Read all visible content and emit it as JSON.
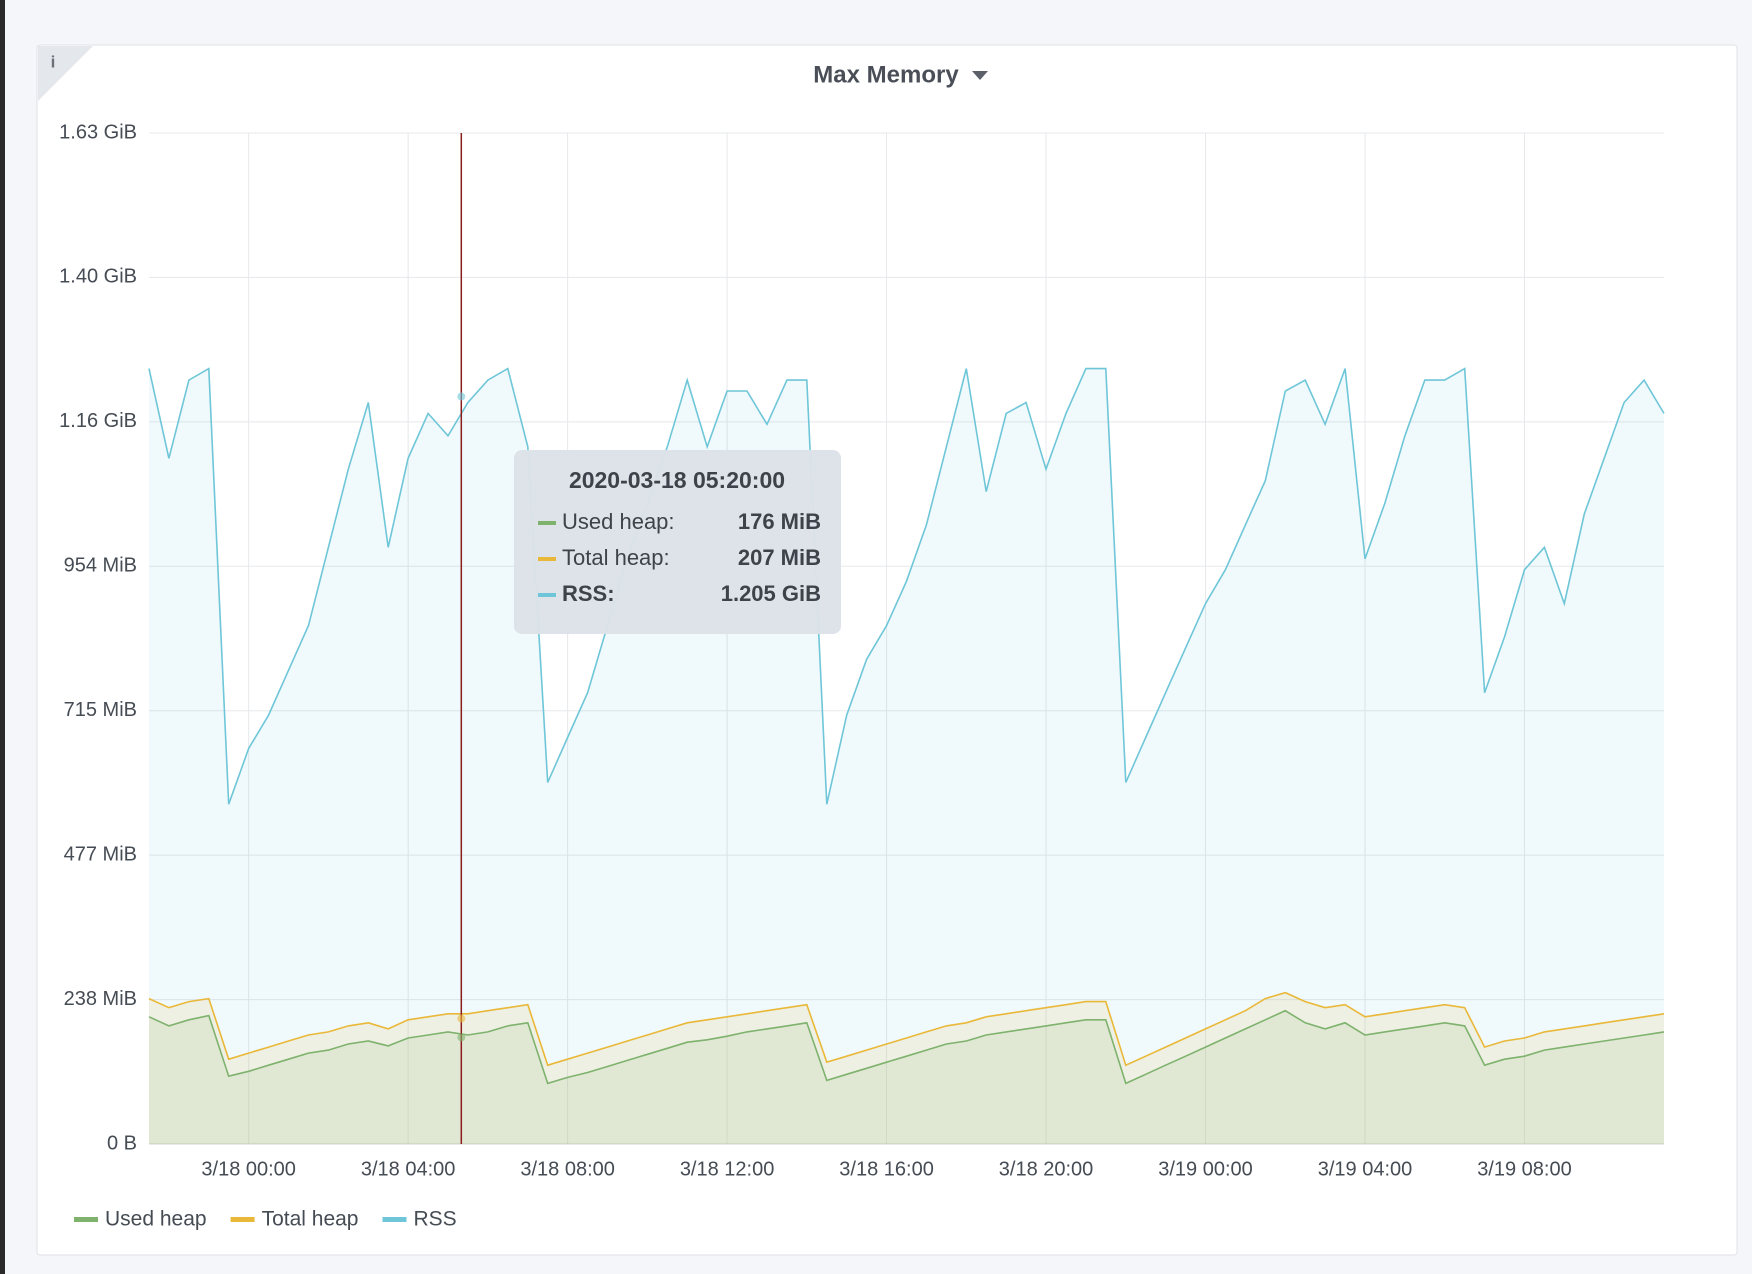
{
  "info_icon": "i",
  "chart_data": {
    "type": "line",
    "title": "Max Memory",
    "x": [
      "2020-03-17 21:30",
      "2020-03-17 22:00",
      "2020-03-17 22:30",
      "2020-03-17 23:00",
      "2020-03-17 23:30",
      "2020-03-18 00:00",
      "2020-03-18 00:30",
      "2020-03-18 01:00",
      "2020-03-18 01:30",
      "2020-03-18 02:00",
      "2020-03-18 02:30",
      "2020-03-18 03:00",
      "2020-03-18 03:30",
      "2020-03-18 04:00",
      "2020-03-18 04:30",
      "2020-03-18 05:00",
      "2020-03-18 05:30",
      "2020-03-18 06:00",
      "2020-03-18 06:30",
      "2020-03-18 07:00",
      "2020-03-18 07:30",
      "2020-03-18 08:00",
      "2020-03-18 08:30",
      "2020-03-18 09:00",
      "2020-03-18 09:30",
      "2020-03-18 10:00",
      "2020-03-18 10:30",
      "2020-03-18 11:00",
      "2020-03-18 11:30",
      "2020-03-18 12:00",
      "2020-03-18 12:30",
      "2020-03-18 13:00",
      "2020-03-18 13:30",
      "2020-03-18 14:00",
      "2020-03-18 14:30",
      "2020-03-18 15:00",
      "2020-03-18 15:30",
      "2020-03-18 16:00",
      "2020-03-18 16:30",
      "2020-03-18 17:00",
      "2020-03-18 17:30",
      "2020-03-18 18:00",
      "2020-03-18 18:30",
      "2020-03-18 19:00",
      "2020-03-18 19:30",
      "2020-03-18 20:00",
      "2020-03-18 20:30",
      "2020-03-18 21:00",
      "2020-03-18 21:30",
      "2020-03-18 22:00",
      "2020-03-18 22:30",
      "2020-03-18 23:00",
      "2020-03-18 23:30",
      "2020-03-19 00:00",
      "2020-03-19 00:30",
      "2020-03-19 01:00",
      "2020-03-19 01:30",
      "2020-03-19 02:00",
      "2020-03-19 02:30",
      "2020-03-19 03:00",
      "2020-03-19 03:30",
      "2020-03-19 04:00",
      "2020-03-19 04:30",
      "2020-03-19 05:00",
      "2020-03-19 05:30",
      "2020-03-19 06:00",
      "2020-03-19 06:30",
      "2020-03-19 07:00",
      "2020-03-19 07:30",
      "2020-03-19 08:00",
      "2020-03-19 08:30",
      "2020-03-19 09:00",
      "2020-03-19 09:30",
      "2020-03-19 10:00",
      "2020-03-19 10:30",
      "2020-03-19 11:00",
      "2020-03-19 11:30"
    ],
    "series": [
      {
        "name": "Used heap",
        "color": "#7eb26d",
        "values": [
          210,
          195,
          205,
          212,
          112,
          120,
          130,
          140,
          150,
          155,
          165,
          170,
          162,
          175,
          180,
          185,
          180,
          185,
          195,
          200,
          100,
          110,
          118,
          128,
          138,
          148,
          158,
          168,
          172,
          178,
          185,
          190,
          195,
          200,
          105,
          115,
          125,
          135,
          145,
          155,
          165,
          170,
          180,
          185,
          190,
          195,
          200,
          205,
          205,
          100,
          115,
          130,
          145,
          160,
          175,
          190,
          205,
          220,
          200,
          190,
          200,
          180,
          185,
          190,
          195,
          200,
          195,
          130,
          140,
          145,
          155,
          160,
          165,
          170,
          175,
          180,
          185
        ]
      },
      {
        "name": "Total heap",
        "color": "#eab839",
        "values": [
          240,
          225,
          235,
          240,
          140,
          150,
          160,
          170,
          180,
          185,
          195,
          200,
          190,
          205,
          210,
          215,
          215,
          220,
          225,
          230,
          130,
          140,
          150,
          160,
          170,
          180,
          190,
          200,
          205,
          210,
          215,
          220,
          225,
          230,
          135,
          145,
          155,
          165,
          175,
          185,
          195,
          200,
          210,
          215,
          220,
          225,
          230,
          235,
          235,
          130,
          145,
          160,
          175,
          190,
          205,
          220,
          240,
          250,
          235,
          225,
          230,
          210,
          215,
          220,
          225,
          230,
          225,
          160,
          170,
          175,
          185,
          190,
          195,
          200,
          205,
          210,
          215
        ]
      },
      {
        "name": "RSS",
        "color": "#6ec6d8",
        "values": [
          1280,
          1132,
          1261,
          1280,
          561,
          653,
          708,
          782,
          856,
          985,
          1114,
          1224,
          985,
          1132,
          1206,
          1169,
          1224,
          1261,
          1280,
          1151,
          597,
          671,
          745,
          856,
          966,
          1058,
          1151,
          1261,
          1151,
          1243,
          1243,
          1188,
          1261,
          1261,
          561,
          708,
          800,
          856,
          929,
          1022,
          1151,
          1280,
          1077,
          1206,
          1224,
          1114,
          1206,
          1280,
          1280,
          597,
          671,
          745,
          819,
          892,
          948,
          1022,
          1095,
          1243,
          1261,
          1188,
          1280,
          966,
          1058,
          1169,
          1261,
          1261,
          1280,
          745,
          837,
          948,
          985,
          892,
          1040,
          1132,
          1224,
          1261,
          1206
        ]
      }
    ],
    "xlim": [
      "2020-03-17 21:30",
      "2020-03-19 11:30"
    ],
    "xticks": [
      {
        "value": "2020-03-18 00:00",
        "label": "3/18 00:00"
      },
      {
        "value": "2020-03-18 04:00",
        "label": "3/18 04:00"
      },
      {
        "value": "2020-03-18 08:00",
        "label": "3/18 08:00"
      },
      {
        "value": "2020-03-18 12:00",
        "label": "3/18 12:00"
      },
      {
        "value": "2020-03-18 16:00",
        "label": "3/18 16:00"
      },
      {
        "value": "2020-03-18 20:00",
        "label": "3/18 20:00"
      },
      {
        "value": "2020-03-19 00:00",
        "label": "3/19 00:00"
      },
      {
        "value": "2020-03-19 04:00",
        "label": "3/19 04:00"
      },
      {
        "value": "2020-03-19 08:00",
        "label": "3/19 08:00"
      }
    ],
    "ylim": [
      0,
      1668.93
    ],
    "yticks": [
      {
        "value": 0,
        "label": "0 B"
      },
      {
        "value": 238.42,
        "label": "238 MiB"
      },
      {
        "value": 476.84,
        "label": "477 MiB"
      },
      {
        "value": 715.26,
        "label": "715 MiB"
      },
      {
        "value": 953.67,
        "label": "954 MiB"
      },
      {
        "value": 1192.09,
        "label": "1.16 GiB"
      },
      {
        "value": 1430.51,
        "label": "1.40 GiB"
      },
      {
        "value": 1668.93,
        "label": "1.63 GiB"
      }
    ],
    "grid": true,
    "legend": "bottom-left",
    "tooltip": {
      "x": "2020-03-18 05:20:00",
      "rows": [
        {
          "label": "Used heap:",
          "value": 176,
          "value_label": "176 MiB"
        },
        {
          "label": "Total heap:",
          "value": 207,
          "value_label": "207 MiB"
        },
        {
          "label": "RSS:",
          "value": 1233.92,
          "value_label": "1.205 GiB"
        }
      ]
    }
  }
}
